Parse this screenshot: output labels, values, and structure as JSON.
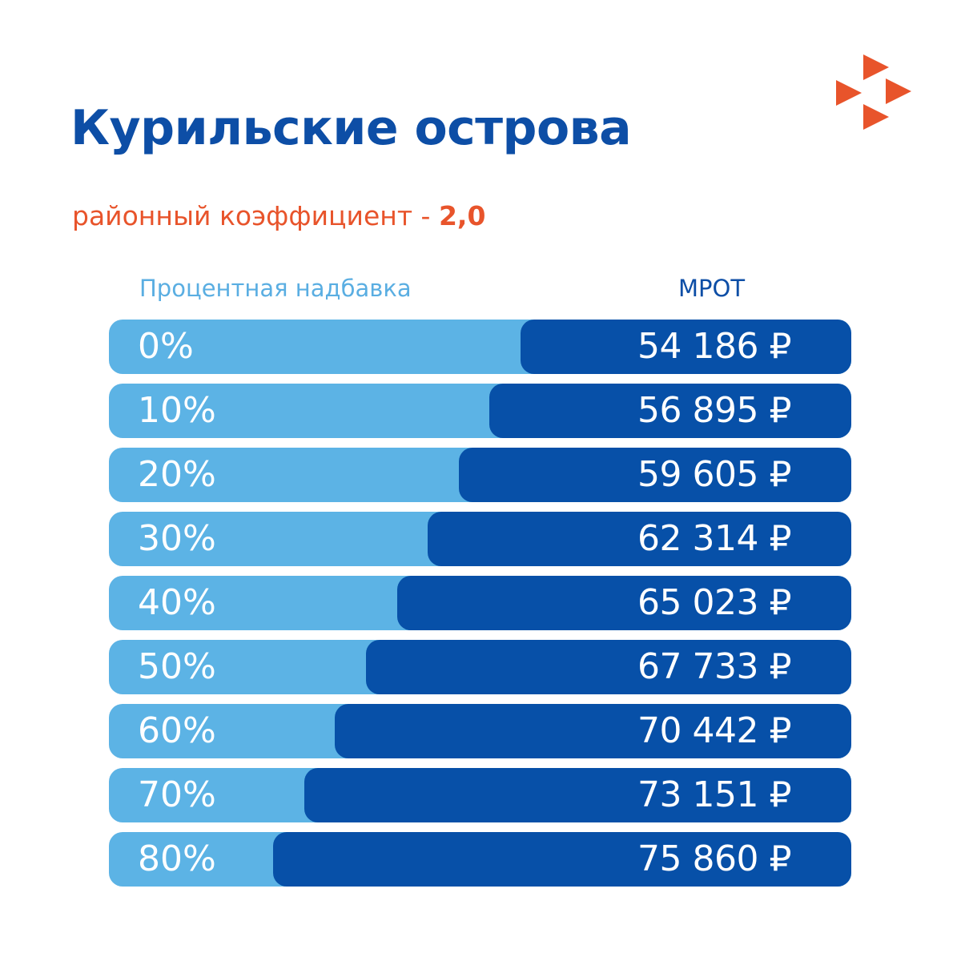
{
  "header": {
    "title": "Курильские острова",
    "subtitle_text": "районный коэффициент - ",
    "subtitle_coef": "2,0"
  },
  "columns": {
    "left": "Процентная надбавка",
    "right": "МРОТ"
  },
  "logo": {
    "icon": "arrows-logo-icon",
    "color": "#e8542b"
  },
  "colors": {
    "title": "#0d4ea6",
    "accent": "#e8542b",
    "bar_light": "#5cb3e5",
    "bar_dark": "#0750a8"
  },
  "chart_data": {
    "type": "bar",
    "orientation": "horizontal",
    "categories": [
      "0%",
      "10%",
      "20%",
      "30%",
      "40%",
      "50%",
      "60%",
      "70%",
      "80%"
    ],
    "values": [
      54186,
      56895,
      59605,
      62314,
      65023,
      67733,
      70442,
      73151,
      75860
    ],
    "value_labels": [
      "54 186 ₽",
      "56 895 ₽",
      "59 605 ₽",
      "62 314 ₽",
      "65 023 ₽",
      "67 733 ₽",
      "70 442 ₽",
      "73 151 ₽",
      "75 860 ₽"
    ],
    "title": "Курильские острова",
    "xlabel": "МРОТ",
    "ylabel": "Процентная надбавка",
    "grid": false
  }
}
